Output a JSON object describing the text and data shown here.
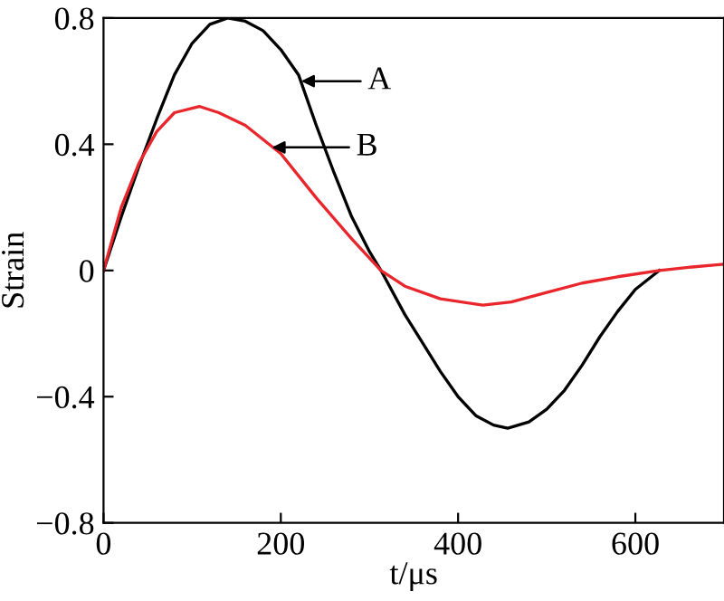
{
  "chart_data": {
    "type": "line",
    "xlabel": "t/μs",
    "ylabel": "Strain",
    "xlim": [
      0,
      700
    ],
    "xticks": [
      0,
      200,
      400,
      600
    ],
    "ylim": [
      -0.8,
      0.8
    ],
    "yticks": [
      {
        "value": -0.8,
        "label": "−0.8"
      },
      {
        "value": -0.4,
        "label": "−0.4"
      },
      0,
      0.4,
      0.8
    ],
    "grid": false,
    "legend": false,
    "series": [
      {
        "color": "#000000",
        "x": [
          0,
          20,
          40,
          60,
          80,
          100,
          120,
          140,
          160,
          180,
          200,
          220,
          240,
          260,
          280,
          300,
          313,
          340,
          360,
          380,
          400,
          420,
          440,
          456,
          480,
          500,
          520,
          540,
          560,
          580,
          600,
          627
        ],
        "values": [
          0,
          0.17,
          0.33,
          0.48,
          0.62,
          0.72,
          0.78,
          0.8,
          0.79,
          0.76,
          0.7,
          0.62,
          0.46,
          0.31,
          0.17,
          0.06,
          0,
          -0.14,
          -0.23,
          -0.32,
          -0.4,
          -0.46,
          -0.49,
          -0.5,
          -0.48,
          -0.44,
          -0.38,
          -0.3,
          -0.21,
          -0.13,
          -0.06,
          0
        ]
      },
      {
        "color": "#e8262b",
        "x": [
          0,
          20,
          40,
          60,
          80,
          108,
          130,
          160,
          200,
          240,
          280,
          313,
          340,
          380,
          428,
          460,
          500,
          540,
          580,
          627,
          660,
          700
        ],
        "values": [
          0,
          0.2,
          0.34,
          0.44,
          0.5,
          0.52,
          0.5,
          0.46,
          0.37,
          0.23,
          0.1,
          0,
          -0.05,
          -0.09,
          -0.11,
          -0.1,
          -0.07,
          -0.04,
          -0.02,
          0,
          0.01,
          0.02
        ]
      }
    ],
    "annotations": [
      {
        "text": "A",
        "x": 223,
        "y": 0.6
      },
      {
        "text": "B",
        "x": 190,
        "y": 0.39
      }
    ]
  }
}
